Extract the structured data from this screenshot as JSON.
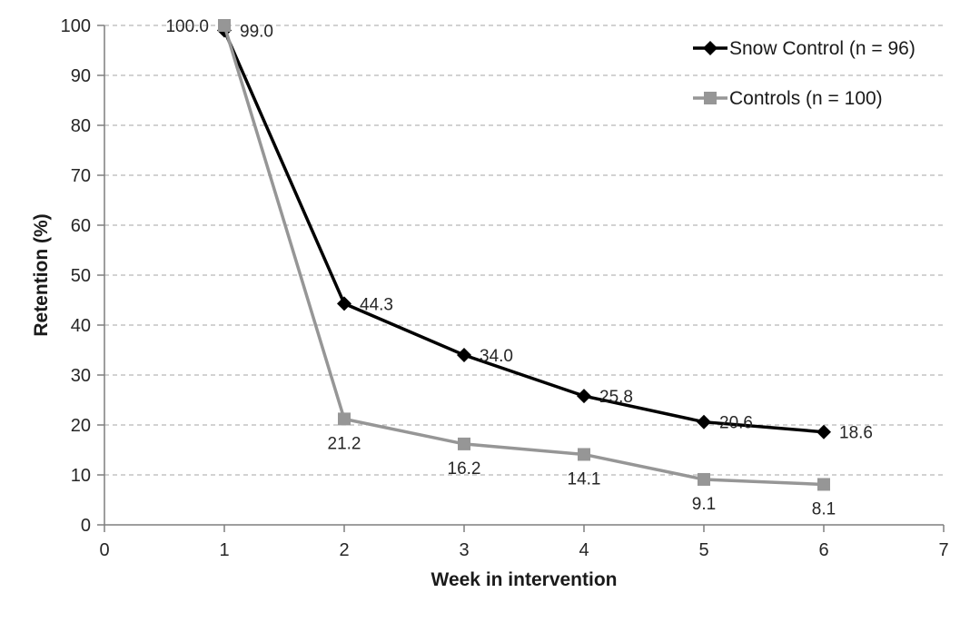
{
  "chart_data": {
    "type": "line",
    "title": "",
    "xlabel": "Week in intervention",
    "ylabel": "Retention (%)",
    "xlim": [
      0,
      7
    ],
    "ylim": [
      0,
      100
    ],
    "x_ticks": [
      0,
      1,
      2,
      3,
      4,
      5,
      6,
      7
    ],
    "y_ticks": [
      0,
      10,
      20,
      30,
      40,
      50,
      60,
      70,
      80,
      90,
      100
    ],
    "grid": "horizontal-dashed",
    "legend_position": "top-right",
    "x": [
      1,
      2,
      3,
      4,
      5,
      6
    ],
    "series": [
      {
        "name": "Snow Control (n = 96)",
        "color": "#000000",
        "marker": "diamond",
        "values": [
          99.0,
          44.3,
          34.0,
          25.8,
          20.6,
          18.6
        ],
        "labels": [
          "99.0",
          "44.3",
          "34.0",
          "25.8",
          "20.6",
          "18.6"
        ],
        "label_positions": [
          "right",
          "right",
          "right",
          "right",
          "right",
          "right"
        ]
      },
      {
        "name": "Controls (n = 100)",
        "color": "#969696",
        "marker": "square",
        "values": [
          100.0,
          21.2,
          16.2,
          14.1,
          9.1,
          8.1
        ],
        "labels": [
          "100.0",
          "21.2",
          "16.2",
          "14.1",
          "9.1",
          "8.1"
        ],
        "label_positions": [
          "left",
          "below",
          "below",
          "below",
          "below",
          "below"
        ]
      }
    ],
    "colors": {
      "grid": "#a6a6a6",
      "axis": "#7f7f7f",
      "tick_text": "#262626",
      "label_text": "#262626"
    }
  }
}
